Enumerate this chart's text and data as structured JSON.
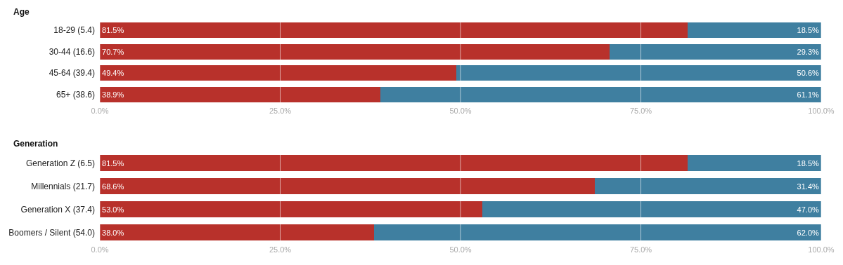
{
  "chart_data": [
    {
      "type": "bar",
      "title": "Age",
      "orientation": "horizontal",
      "stacked": true,
      "grid": "x",
      "categories": [
        "18-29 (5.4)",
        "30-44 (16.6)",
        "45-64 (39.4)",
        "65+ (38.6)"
      ],
      "series": [
        {
          "color": "#b8312b",
          "values": [
            81.5,
            70.7,
            49.4,
            38.9
          ],
          "value_labels": [
            "81.5%",
            "70.7%",
            "49.4%",
            "38.9%"
          ]
        },
        {
          "color": "#3f7fa0",
          "values": [
            18.5,
            29.3,
            50.6,
            61.1
          ],
          "value_labels": [
            "18.5%",
            "29.3%",
            "50.6%",
            "61.1%"
          ]
        }
      ],
      "xlim": [
        0,
        100
      ],
      "xticks": [
        {
          "value": 0,
          "label": "0.0%"
        },
        {
          "value": 25,
          "label": "25.0%"
        },
        {
          "value": 50,
          "label": "50.0%"
        },
        {
          "value": 75,
          "label": "75.0%"
        },
        {
          "value": 100,
          "label": "100.0%"
        }
      ]
    },
    {
      "type": "bar",
      "title": "Generation",
      "orientation": "horizontal",
      "stacked": true,
      "grid": "x",
      "categories": [
        "Generation Z (6.5)",
        "Millennials (21.7)",
        "Generation X (37.4)",
        "Boomers / Silent (54.0)"
      ],
      "series": [
        {
          "color": "#b8312b",
          "values": [
            81.5,
            68.6,
            53.0,
            38.0
          ],
          "value_labels": [
            "81.5%",
            "68.6%",
            "53.0%",
            "38.0%"
          ]
        },
        {
          "color": "#3f7fa0",
          "values": [
            18.5,
            31.4,
            47.0,
            62.0
          ],
          "value_labels": [
            "18.5%",
            "31.4%",
            "47.0%",
            "62.0%"
          ]
        }
      ],
      "xlim": [
        0,
        100
      ],
      "xticks": [
        {
          "value": 0,
          "label": "0.0%"
        },
        {
          "value": 25,
          "label": "25.0%"
        },
        {
          "value": 50,
          "label": "50.0%"
        },
        {
          "value": 75,
          "label": "75.0%"
        },
        {
          "value": 100,
          "label": "100.0%"
        }
      ]
    }
  ]
}
